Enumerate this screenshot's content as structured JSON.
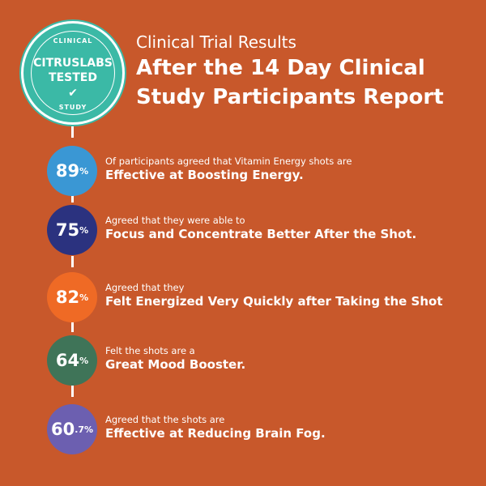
{
  "badge": {
    "top": "CLINICAL",
    "line1": "CITRUSLABS",
    "line2": "TESTED",
    "bottom": "STUDY",
    "icon": "checkmark-icon"
  },
  "header": {
    "subtitle": "Clinical Trial Results",
    "title": "After the 14 Day Clinical Study Participants Report"
  },
  "results": [
    {
      "value": "89",
      "unit": "%",
      "color": "#3a97d4",
      "line1": "Of participants agreed that Vitamin Energy shots are",
      "line2": "Effective at Boosting Energy."
    },
    {
      "value": "75",
      "unit": "%",
      "color": "#2b327f",
      "line1": "Agreed that they were able to",
      "line2": "Focus and Concentrate Better After the Shot."
    },
    {
      "value": "82",
      "unit": "%",
      "color": "#ef6a25",
      "line1": "Agreed that they",
      "line2": "Felt Energized Very Quickly after Taking the Shot"
    },
    {
      "value": "64",
      "unit": "%",
      "color": "#3f7458",
      "line1": "Felt the shots are a",
      "line2": "Great Mood Booster."
    },
    {
      "value": "60",
      "unit": ".7%",
      "color": "#6c5fb0",
      "line1": "Agreed that the shots are",
      "line2": "Effective at Reducing Brain Fog."
    }
  ]
}
